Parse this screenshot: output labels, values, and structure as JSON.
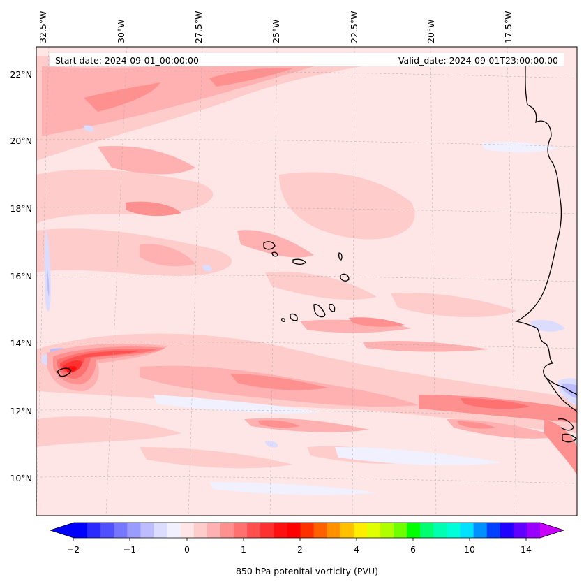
{
  "header": {
    "start_date": "Start date: 2024-09-01_00:00:00",
    "valid_date": "Valid_date: 2024-09-01T23:00:00.00"
  },
  "longitude_labels": [
    "32.5°W",
    "30°W",
    "27.5°W",
    "25°W",
    "22.5°W",
    "20°W",
    "17.5°W"
  ],
  "latitude_labels": [
    "22°N",
    "20°N",
    "18°N",
    "16°N",
    "14°N",
    "12°N",
    "10°N"
  ],
  "colorbar": {
    "label": "850 hPa potenital vorticity (PVU)",
    "tick_labels": [
      "−2",
      "−1",
      "0",
      "1",
      "2",
      "4",
      "6",
      "10",
      "14"
    ],
    "colors": [
      "#0000ff",
      "#2a2aff",
      "#5050ff",
      "#7676ff",
      "#9a9aff",
      "#bcbcff",
      "#dcdcff",
      "#f0f0ff",
      "#ffe6e6",
      "#ffcccc",
      "#ffb0b0",
      "#ff9090",
      "#ff7070",
      "#ff5050",
      "#ff3030",
      "#ff1010",
      "#ff0000",
      "#ff3000",
      "#ff6000",
      "#ff9000",
      "#ffc000",
      "#ffee00",
      "#e0ff00",
      "#b0ff00",
      "#70ff00",
      "#00ff00",
      "#00ff70",
      "#00ffb0",
      "#00ffd8",
      "#00e0ff",
      "#0090ff",
      "#0040ff",
      "#2000ff",
      "#6000ff",
      "#9a00ff"
    ],
    "under_color": "#0000ff",
    "over_color": "#c800ff"
  }
}
